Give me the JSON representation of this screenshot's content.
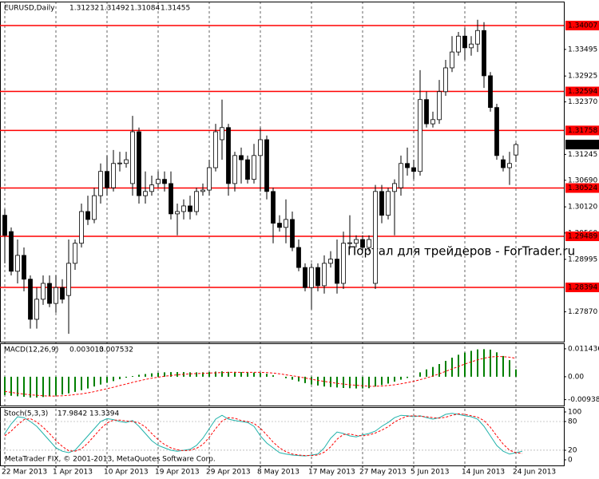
{
  "chart_data": [
    {
      "type": "candlestick",
      "title": "EURUSD,Daily",
      "candles": [
        [
          1.2994,
          1.3007,
          1.2891,
          1.2951
        ],
        [
          1.2959,
          1.2968,
          1.2865,
          1.2874
        ],
        [
          1.2874,
          1.2942,
          1.2848,
          1.2908
        ],
        [
          1.2908,
          1.2925,
          1.2831,
          1.2857
        ],
        [
          1.2857,
          1.2865,
          1.2751,
          1.2771
        ],
        [
          1.2771,
          1.2839,
          1.2751,
          1.2814
        ],
        [
          1.2814,
          1.2865,
          1.2802,
          1.2848
        ],
        [
          1.2848,
          1.2865,
          1.2797,
          1.2805
        ],
        [
          1.2805,
          1.2865,
          1.2785,
          1.2839
        ],
        [
          1.2839,
          1.2857,
          1.2805,
          1.2814
        ],
        [
          1.2822,
          1.2942,
          1.274,
          1.2891
        ],
        [
          1.2891,
          1.2942,
          1.2877,
          1.2934
        ],
        [
          1.2934,
          1.3019,
          1.2925,
          1.3002
        ],
        [
          1.3002,
          1.3036,
          1.2973,
          1.2985
        ],
        [
          1.2985,
          1.3053,
          1.2977,
          1.3036
        ],
        [
          1.3036,
          1.3105,
          1.3019,
          1.3088
        ],
        [
          1.3088,
          1.3122,
          1.3036,
          1.3053
        ],
        [
          1.3053,
          1.3134,
          1.3045,
          1.3105
        ],
        [
          1.3105,
          1.313,
          1.3088,
          1.3106
        ],
        [
          1.3105,
          1.313,
          1.3096,
          1.3113
        ],
        [
          1.3062,
          1.3207,
          1.3036,
          1.3173
        ],
        [
          1.3173,
          1.3182,
          1.3019,
          1.3036
        ],
        [
          1.3036,
          1.3088,
          1.3019,
          1.3045
        ],
        [
          1.3045,
          1.3079,
          1.3036,
          1.3059
        ],
        [
          1.3062,
          1.3088,
          1.3053,
          1.3071
        ],
        [
          1.3071,
          1.3088,
          1.3045,
          1.3062
        ],
        [
          1.3062,
          1.3088,
          1.2985,
          1.2997
        ],
        [
          1.2997,
          1.3019,
          1.2951,
          1.3002
        ],
        [
          1.3002,
          1.3028,
          1.2985,
          1.3014
        ],
        [
          1.3014,
          1.3036,
          1.2985,
          1.3002
        ],
        [
          1.3002,
          1.3053,
          1.2994,
          1.3045
        ],
        [
          1.3045,
          1.3062,
          1.3036,
          1.3048
        ],
        [
          1.3048,
          1.3113,
          1.3036,
          1.3096
        ],
        [
          1.3096,
          1.319,
          1.3088,
          1.3173
        ],
        [
          1.3156,
          1.3242,
          1.3113,
          1.3182
        ],
        [
          1.3182,
          1.319,
          1.3036,
          1.3062
        ],
        [
          1.3062,
          1.313,
          1.3045,
          1.3122
        ],
        [
          1.3122,
          1.3139,
          1.3062,
          1.3113
        ],
        [
          1.3113,
          1.3122,
          1.3062,
          1.3071
        ],
        [
          1.3071,
          1.3147,
          1.3062,
          1.3122
        ],
        [
          1.3122,
          1.3182,
          1.3045,
          1.3156
        ],
        [
          1.3156,
          1.3165,
          1.3028,
          1.3045
        ],
        [
          1.3045,
          1.3053,
          1.2934,
          1.2977
        ],
        [
          1.2977,
          1.2994,
          1.2959,
          1.2968
        ],
        [
          1.2968,
          1.3028,
          1.2934,
          1.2985
        ],
        [
          1.2985,
          1.3002,
          1.2917,
          1.2925
        ],
        [
          1.2925,
          1.2942,
          1.2874,
          1.2882
        ],
        [
          1.2882,
          1.2891,
          1.2831,
          1.2839
        ],
        [
          1.2839,
          1.2891,
          1.2792,
          1.2882
        ],
        [
          1.2882,
          1.2891,
          1.2831,
          1.2843
        ],
        [
          1.2843,
          1.2908,
          1.2826,
          1.2891
        ],
        [
          1.2891,
          1.2917,
          1.2882,
          1.29
        ],
        [
          1.29,
          1.2942,
          1.2826,
          1.2848
        ],
        [
          1.2848,
          1.2959,
          1.2836,
          1.2934
        ],
        [
          1.2934,
          1.2994,
          1.2922,
          1.2935
        ],
        [
          1.2934,
          1.2951,
          1.2925,
          1.2942
        ],
        [
          1.2942,
          1.2951,
          1.2917,
          1.2925
        ],
        [
          1.2925,
          1.2951,
          1.2917,
          1.2942
        ],
        [
          1.2848,
          1.3059,
          1.2836,
          1.3045
        ],
        [
          1.3045,
          1.3059,
          1.2977,
          1.2994
        ],
        [
          1.2994,
          1.3053,
          1.2985,
          1.3045
        ],
        [
          1.3045,
          1.3071,
          1.2951,
          1.3062
        ],
        [
          1.3053,
          1.3122,
          1.3036,
          1.3105
        ],
        [
          1.3105,
          1.3139,
          1.3079,
          1.3096
        ],
        [
          1.3096,
          1.3113,
          1.3071,
          1.3088
        ],
        [
          1.3088,
          1.3305,
          1.3079,
          1.3242
        ],
        [
          1.3242,
          1.3259,
          1.3182,
          1.319
        ],
        [
          1.319,
          1.3216,
          1.3182,
          1.3199
        ],
        [
          1.3199,
          1.3284,
          1.319,
          1.3259
        ],
        [
          1.3259,
          1.3327,
          1.325,
          1.331
        ],
        [
          1.331,
          1.3378,
          1.3301,
          1.3344
        ],
        [
          1.3344,
          1.3387,
          1.3336,
          1.3378
        ],
        [
          1.3378,
          1.3396,
          1.3327,
          1.3353
        ],
        [
          1.3353,
          1.3378,
          1.3336,
          1.3361
        ],
        [
          1.3361,
          1.3413,
          1.3344,
          1.339
        ],
        [
          1.339,
          1.3408,
          1.3267,
          1.3293
        ],
        [
          1.3293,
          1.3301,
          1.3216,
          1.3225
        ],
        [
          1.3225,
          1.3233,
          1.3113,
          1.3122
        ],
        [
          1.3113,
          1.3122,
          1.3088,
          1.3096
        ],
        [
          1.3096,
          1.313,
          1.3059,
          1.3105
        ],
        [
          1.31232,
          1.31492,
          1.31084,
          1.31455
        ]
      ],
      "ylim": [
        1.2723,
        1.3452
      ],
      "yticks": [
        1.33495,
        1.32925,
        {
          "value": 1.3237,
          "label": "1.32370"
        },
        1.31245,
        {
          "value": 1.3069,
          "label": "1.30690"
        },
        {
          "value": 1.3012,
          "label": "1.30120"
        },
        {
          "value": 1.2956,
          "label": "1.29560"
        },
        1.28995,
        {
          "value": 1.2787,
          "label": "1.27870"
        }
      ],
      "levels": [
        1.34007,
        1.32594,
        1.31758,
        1.30524,
        1.29489,
        1.28394
      ],
      "level_color": "#ff0000",
      "bull_color": "#ffffff",
      "bear_color": "#000000",
      "xticks": [
        {
          "value": 0,
          "label": "22 Mar 2013"
        },
        {
          "value": 8,
          "label": "1 Apr 2013"
        },
        {
          "value": 16,
          "label": "10 Apr 2013"
        },
        {
          "value": 24,
          "label": "19 Apr 2013"
        },
        {
          "value": 32,
          "label": "29 Apr 2013"
        },
        {
          "value": 40,
          "label": "8 May 2013"
        },
        {
          "value": 48,
          "label": "17 May 2013"
        },
        {
          "value": 56,
          "label": "27 May 2013"
        },
        {
          "value": 64,
          "label": "5 Jun 2013"
        },
        {
          "value": 72,
          "label": "14 Jun 2013"
        },
        {
          "value": 80,
          "label": "24 Jun 2013"
        }
      ],
      "watermark": "Портал для трейдеров - ForTrader.ru"
    },
    {
      "type": "macd",
      "title": "MACD(12,26,9)",
      "histogram": {
        "color": "#008000",
        "values": [
          -0.0075,
          -0.0078,
          -0.008,
          -0.0082,
          -0.0085,
          -0.0085,
          -0.0083,
          -0.008,
          -0.0077,
          -0.0073,
          -0.0068,
          -0.0062,
          -0.0055,
          -0.0048,
          -0.004,
          -0.0032,
          -0.0025,
          -0.0018,
          -0.001,
          -0.0004,
          0.0003,
          0.0008,
          0.0011,
          0.0014,
          0.0016,
          0.0018,
          0.0019,
          0.0019,
          0.0019,
          0.0018,
          0.0018,
          0.0018,
          0.0019,
          0.0021,
          0.0022,
          0.002,
          0.002,
          0.0019,
          0.0018,
          0.0017,
          0.0016,
          0.0012,
          0.0006,
          0,
          -0.0006,
          -0.0012,
          -0.0019,
          -0.0026,
          -0.0032,
          -0.0036,
          -0.004,
          -0.0042,
          -0.0044,
          -0.0046,
          -0.0047,
          -0.0048,
          -0.0048,
          -0.0047,
          -0.004,
          -0.0034,
          -0.0028,
          -0.002,
          -0.0012,
          -0.0005,
          0.0001,
          0.0018,
          0.003,
          0.004,
          0.0052,
          0.0065,
          0.0078,
          0.009,
          0.0099,
          0.0106,
          0.0112,
          0.0113,
          0.0111,
          0.01,
          0.0085,
          0.0068,
          0.003013
        ]
      },
      "signal": {
        "color": "#ff0000",
        "values": [
          -0.006,
          -0.0064,
          -0.0068,
          -0.0071,
          -0.0074,
          -0.0076,
          -0.0078,
          -0.0079,
          -0.0079,
          -0.0078,
          -0.0076,
          -0.0073,
          -0.007,
          -0.0066,
          -0.0061,
          -0.0055,
          -0.0049,
          -0.0043,
          -0.0036,
          -0.003,
          -0.0023,
          -0.0017,
          -0.0011,
          -0.0006,
          -0.0002,
          0.0002,
          0.0005,
          0.0008,
          0.001,
          0.0012,
          0.0013,
          0.0014,
          0.0015,
          0.0016,
          0.0017,
          0.0018,
          0.0018,
          0.0018,
          0.0018,
          0.0018,
          0.0018,
          0.0017,
          0.0015,
          0.0012,
          0.0008,
          0.0004,
          0,
          -0.0005,
          -0.001,
          -0.0015,
          -0.0019,
          -0.0023,
          -0.0027,
          -0.003,
          -0.0033,
          -0.0035,
          -0.0037,
          -0.0039,
          -0.0039,
          -0.0038,
          -0.0036,
          -0.0033,
          -0.0029,
          -0.0024,
          -0.0019,
          -0.0012,
          -0.0005,
          0.0003,
          0.0012,
          0.0022,
          0.0032,
          0.0042,
          0.0052,
          0.0061,
          0.0069,
          0.0076,
          0.0081,
          0.0083,
          0.0082,
          0.008,
          0.007532
        ]
      },
      "ylim": [
        -0.0118,
        0.0137
      ],
      "yticks": [
        0.011436,
        {
          "value": 0,
          "label": "0.00"
        },
        -0.009385
      ]
    },
    {
      "type": "stochastic",
      "title": "Stoch(5,3,3)",
      "main": {
        "color": "#20b2aa",
        "values": [
          55,
          75,
          90,
          88,
          80,
          70,
          55,
          40,
          25,
          18,
          15,
          20,
          35,
          50,
          65,
          80,
          86,
          84,
          80,
          78,
          82,
          70,
          55,
          40,
          30,
          25,
          20,
          18,
          20,
          22,
          30,
          45,
          65,
          85,
          93,
          85,
          82,
          80,
          78,
          70,
          50,
          35,
          25,
          15,
          12,
          10,
          9,
          8,
          10,
          12,
          25,
          45,
          58,
          55,
          50,
          48,
          52,
          55,
          60,
          70,
          78,
          88,
          93,
          92,
          90,
          92,
          88,
          85,
          88,
          95,
          97,
          95,
          92,
          90,
          85,
          70,
          50,
          30,
          18,
          12,
          15,
          17.9842
        ]
      },
      "signal": {
        "color": "#ff0000",
        "values": [
          50,
          60,
          73,
          84,
          86,
          79,
          68,
          55,
          40,
          28,
          19,
          18,
          23,
          35,
          50,
          65,
          77,
          83,
          83,
          81,
          80,
          77,
          69,
          55,
          42,
          32,
          25,
          21,
          19,
          20,
          24,
          32,
          47,
          65,
          81,
          88,
          87,
          82,
          80,
          76,
          66,
          52,
          37,
          25,
          17,
          12,
          10,
          9,
          9,
          10,
          16,
          27,
          43,
          53,
          54,
          51,
          50,
          52,
          56,
          62,
          69,
          79,
          86,
          91,
          92,
          91,
          90,
          88,
          87,
          89,
          93,
          96,
          95,
          92,
          89,
          82,
          68,
          50,
          33,
          20,
          15,
          13.3394
        ]
      },
      "ylim": [
        -11.7,
        110
      ],
      "yticks": [
        100,
        80,
        20,
        0
      ],
      "footer": "MetaTrader FIX, © 2001-2013, MetaQuotes Software Corp."
    }
  ]
}
